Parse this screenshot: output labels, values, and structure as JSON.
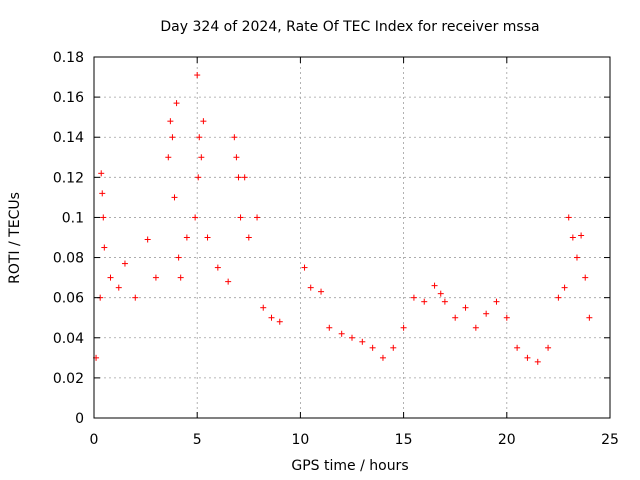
{
  "chart_data": {
    "type": "scatter",
    "title": "Day 324 of 2024, Rate Of TEC Index for receiver mssa",
    "xlabel": "GPS time / hours",
    "ylabel": "ROTI / TECUs",
    "xlim": [
      0,
      25
    ],
    "ylim": [
      0,
      0.18
    ],
    "xticks": [
      "0",
      "5",
      "10",
      "15",
      "20",
      "25"
    ],
    "yticks": [
      "0",
      "0.02",
      "0.04",
      "0.06",
      "0.08",
      "0.1",
      "0.12",
      "0.14",
      "0.16",
      "0.18"
    ],
    "grid": true,
    "marker": "+",
    "series": [
      {
        "name": "ROTI",
        "color": "#ff0000",
        "x": [
          0.1,
          0.3,
          0.35,
          0.4,
          0.45,
          0.5,
          0.8,
          1.2,
          1.5,
          2.0,
          2.6,
          3.0,
          3.6,
          3.7,
          3.8,
          3.9,
          4.0,
          4.1,
          4.2,
          4.5,
          4.9,
          5.0,
          5.05,
          5.1,
          5.2,
          5.3,
          5.5,
          6.0,
          6.5,
          6.8,
          6.9,
          7.0,
          7.1,
          7.3,
          7.5,
          7.9,
          8.2,
          8.6,
          9.0,
          10.2,
          10.5,
          11.0,
          11.4,
          12.0,
          12.5,
          13.0,
          13.5,
          14.0,
          14.5,
          15.0,
          15.5,
          16.0,
          16.5,
          16.8,
          17.0,
          17.5,
          18.0,
          18.5,
          19.0,
          19.5,
          20.0,
          20.5,
          21.0,
          21.5,
          22.0,
          22.5,
          22.8,
          23.0,
          23.2,
          23.4,
          23.6,
          23.8,
          24.0
        ],
        "y": [
          0.03,
          0.06,
          0.122,
          0.112,
          0.1,
          0.085,
          0.07,
          0.065,
          0.077,
          0.06,
          0.089,
          0.07,
          0.13,
          0.148,
          0.14,
          0.11,
          0.157,
          0.08,
          0.07,
          0.09,
          0.1,
          0.171,
          0.12,
          0.14,
          0.13,
          0.148,
          0.09,
          0.075,
          0.068,
          0.14,
          0.13,
          0.12,
          0.1,
          0.12,
          0.09,
          0.1,
          0.055,
          0.05,
          0.048,
          0.075,
          0.065,
          0.063,
          0.045,
          0.042,
          0.04,
          0.038,
          0.035,
          0.03,
          0.035,
          0.045,
          0.06,
          0.058,
          0.066,
          0.062,
          0.058,
          0.05,
          0.055,
          0.045,
          0.052,
          0.058,
          0.05,
          0.035,
          0.03,
          0.028,
          0.035,
          0.06,
          0.065,
          0.1,
          0.09,
          0.08,
          0.091,
          0.07,
          0.05
        ]
      }
    ]
  }
}
